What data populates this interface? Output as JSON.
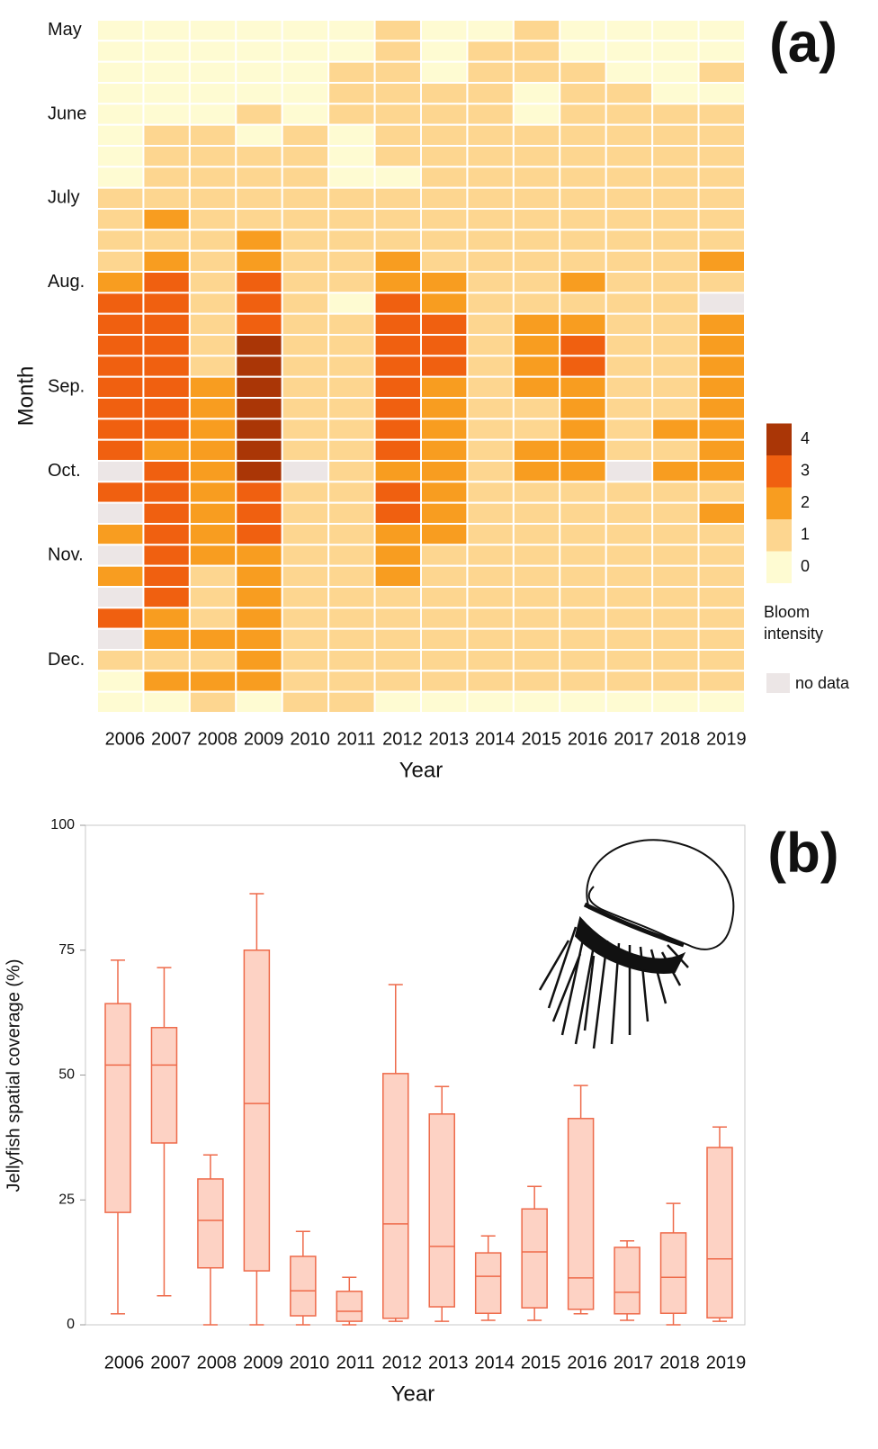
{
  "chart_data": [
    {
      "type": "heatmap",
      "panel_label": "(a)",
      "xlabel": "Year",
      "ylabel": "Month",
      "x": [
        "2006",
        "2007",
        "2008",
        "2009",
        "2010",
        "2011",
        "2012",
        "2013",
        "2014",
        "2015",
        "2016",
        "2017",
        "2018",
        "2019"
      ],
      "y": [
        "May",
        null,
        null,
        null,
        "June",
        null,
        null,
        null,
        "July",
        null,
        null,
        null,
        "Aug.",
        null,
        null,
        null,
        null,
        "Sep.",
        null,
        null,
        null,
        "Oct.",
        null,
        null,
        null,
        "Nov.",
        null,
        null,
        null,
        null,
        "Dec.",
        null,
        null
      ],
      "values": [
        [
          0,
          0,
          0,
          0,
          0,
          0,
          1,
          0,
          0,
          1,
          0,
          0,
          0,
          0
        ],
        [
          0,
          0,
          0,
          0,
          0,
          0,
          1,
          0,
          1,
          1,
          0,
          0,
          0,
          0
        ],
        [
          0,
          0,
          0,
          0,
          0,
          1,
          1,
          0,
          1,
          1,
          1,
          0,
          0,
          1
        ],
        [
          0,
          0,
          0,
          0,
          0,
          1,
          1,
          1,
          1,
          0,
          1,
          1,
          0,
          0
        ],
        [
          0,
          0,
          0,
          1,
          0,
          1,
          1,
          1,
          1,
          0,
          1,
          1,
          1,
          1
        ],
        [
          0,
          1,
          1,
          0,
          1,
          0,
          1,
          1,
          1,
          1,
          1,
          1,
          1,
          1
        ],
        [
          0,
          1,
          1,
          1,
          1,
          0,
          1,
          1,
          1,
          1,
          1,
          1,
          1,
          1
        ],
        [
          0,
          1,
          1,
          1,
          1,
          0,
          0,
          1,
          1,
          1,
          1,
          1,
          1,
          1
        ],
        [
          1,
          1,
          1,
          1,
          1,
          1,
          1,
          1,
          1,
          1,
          1,
          1,
          1,
          1
        ],
        [
          1,
          2,
          1,
          1,
          1,
          1,
          1,
          1,
          1,
          1,
          1,
          1,
          1,
          1
        ],
        [
          1,
          1,
          1,
          2,
          1,
          1,
          1,
          1,
          1,
          1,
          1,
          1,
          1,
          1
        ],
        [
          1,
          2,
          1,
          2,
          1,
          1,
          2,
          1,
          1,
          1,
          1,
          1,
          1,
          2
        ],
        [
          2,
          3,
          1,
          3,
          1,
          1,
          2,
          2,
          1,
          1,
          2,
          1,
          1,
          1
        ],
        [
          3,
          3,
          1,
          3,
          1,
          0,
          3,
          2,
          1,
          1,
          1,
          1,
          1,
          null
        ],
        [
          3,
          3,
          1,
          3,
          1,
          1,
          3,
          3,
          1,
          2,
          2,
          1,
          1,
          2
        ],
        [
          3,
          3,
          1,
          4,
          1,
          1,
          3,
          3,
          1,
          2,
          3,
          1,
          1,
          2
        ],
        [
          3,
          3,
          1,
          4,
          1,
          1,
          3,
          3,
          1,
          2,
          3,
          1,
          1,
          2
        ],
        [
          3,
          3,
          2,
          4,
          1,
          1,
          3,
          2,
          1,
          2,
          2,
          1,
          1,
          2
        ],
        [
          3,
          3,
          2,
          4,
          1,
          1,
          3,
          2,
          1,
          1,
          2,
          1,
          1,
          2
        ],
        [
          3,
          3,
          2,
          4,
          1,
          1,
          3,
          2,
          1,
          1,
          2,
          1,
          2,
          2
        ],
        [
          3,
          2,
          2,
          4,
          1,
          1,
          3,
          2,
          1,
          2,
          2,
          1,
          1,
          2
        ],
        [
          null,
          3,
          2,
          4,
          null,
          1,
          2,
          2,
          1,
          2,
          2,
          null,
          2,
          2
        ],
        [
          3,
          3,
          2,
          3,
          1,
          1,
          3,
          2,
          1,
          1,
          1,
          1,
          1,
          1
        ],
        [
          null,
          3,
          2,
          3,
          1,
          1,
          3,
          2,
          1,
          1,
          1,
          1,
          1,
          2
        ],
        [
          2,
          3,
          2,
          3,
          1,
          1,
          2,
          2,
          1,
          1,
          1,
          1,
          1,
          1
        ],
        [
          null,
          3,
          2,
          2,
          1,
          1,
          2,
          1,
          1,
          1,
          1,
          1,
          1,
          1
        ],
        [
          2,
          3,
          1,
          2,
          1,
          1,
          2,
          1,
          1,
          1,
          1,
          1,
          1,
          1
        ],
        [
          null,
          3,
          1,
          2,
          1,
          1,
          1,
          1,
          1,
          1,
          1,
          1,
          1,
          1
        ],
        [
          3,
          2,
          1,
          2,
          1,
          1,
          1,
          1,
          1,
          1,
          1,
          1,
          1,
          1
        ],
        [
          null,
          2,
          2,
          2,
          1,
          1,
          1,
          1,
          1,
          1,
          1,
          1,
          1,
          1
        ],
        [
          1,
          1,
          1,
          2,
          1,
          1,
          1,
          1,
          1,
          1,
          1,
          1,
          1,
          1
        ],
        [
          0,
          2,
          2,
          2,
          1,
          1,
          1,
          1,
          1,
          1,
          1,
          1,
          1,
          1
        ],
        [
          0,
          0,
          1,
          0,
          1,
          1,
          0,
          0,
          0,
          0,
          0,
          0,
          0,
          0
        ]
      ],
      "colors": [
        "#fefbd2",
        "#fdd690",
        "#f89d20",
        "#f06010",
        "#aa3606"
      ],
      "nodata_color": "#ece6e6",
      "colorbar_ticks": [
        0,
        1,
        2,
        3,
        4
      ],
      "colorbar_label": "Bloom intensity",
      "nodata_label": "no data"
    },
    {
      "type": "box",
      "panel_label": "(b)",
      "xlabel": "Year",
      "ylabel": "Jellyfish spatial coverage (%)",
      "categories": [
        "2006",
        "2007",
        "2008",
        "2009",
        "2010",
        "2011",
        "2012",
        "2013",
        "2014",
        "2015",
        "2016",
        "2017",
        "2018",
        "2019"
      ],
      "min": [
        2.2,
        5.8,
        0,
        0,
        0,
        0,
        0.7,
        0.7,
        0.9,
        0.9,
        2.2,
        0.9,
        0,
        0.7
      ],
      "q1": [
        22.5,
        36.4,
        11.4,
        10.8,
        1.8,
        0.7,
        1.3,
        3.6,
        2.3,
        3.4,
        3.1,
        2.2,
        2.3,
        1.4
      ],
      "median": [
        52,
        52,
        20.9,
        44.3,
        6.8,
        2.7,
        20.2,
        15.7,
        9.7,
        14.6,
        9.4,
        6.5,
        9.5,
        13.2
      ],
      "q3": [
        64.3,
        59.5,
        29.2,
        75,
        13.7,
        6.7,
        50.3,
        42.2,
        14.4,
        23.2,
        41.3,
        15.5,
        18.4,
        35.5
      ],
      "max": [
        73,
        71.5,
        34,
        86.3,
        18.7,
        9.5,
        68.1,
        47.7,
        17.8,
        27.7,
        47.9,
        16.8,
        24.3,
        39.6
      ],
      "color": "#ee6a4a",
      "fill": "#fdd2c4",
      "ylim": [
        0,
        100
      ],
      "yticks": [
        0,
        25,
        50,
        75,
        100
      ]
    }
  ]
}
